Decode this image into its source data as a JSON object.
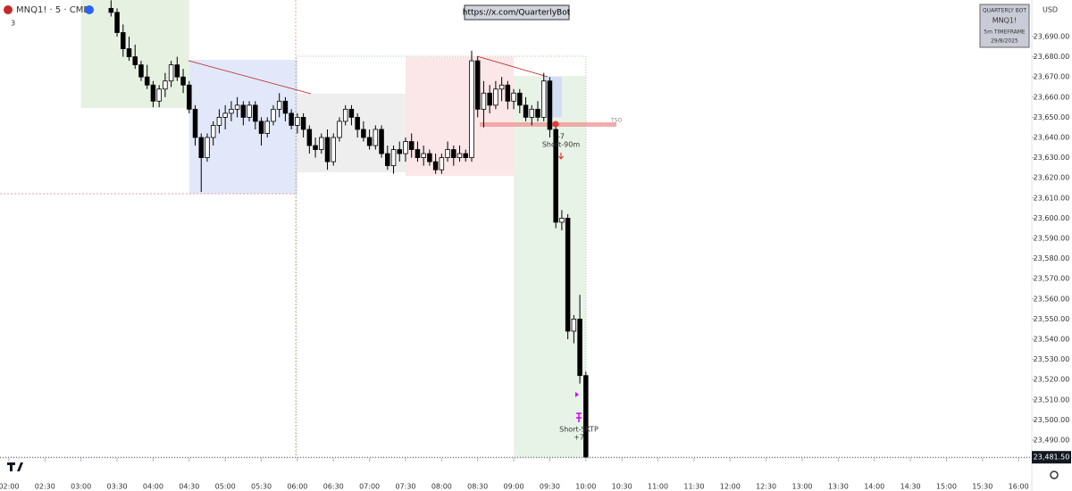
{
  "chart_data": {
    "type": "candlestick",
    "symbol": "MNQ1! · 5 · CME",
    "indicator_count": "3",
    "currency": "USD",
    "link": "https://x.com/QuarterlyBot",
    "info_box": [
      "QUARTERLY BOT",
      "MNQ1!",
      "5m TIMEFRAME",
      "29/8/2025"
    ],
    "annotations": {
      "level": "TSO",
      "entry_pnl": "-7",
      "entry": "Short-90m",
      "exit": "Short-SKTP",
      "exit_pnl": "+7"
    },
    "last_price": {
      "value": 23481.5,
      "label": "23,481.50"
    },
    "up_color": "#ffffff",
    "down_color": "#000000",
    "wick_color": "#000000",
    "xlim": [
      112.6,
      971
    ],
    "ylim": [
      23481.15,
      23708.14
    ],
    "grid": false,
    "xticks": [
      {
        "value": 120,
        "label": "02:00"
      },
      {
        "value": 150,
        "label": "02:30"
      },
      {
        "value": 180,
        "label": "03:00"
      },
      {
        "value": 210,
        "label": "03:30"
      },
      {
        "value": 240,
        "label": "04:00"
      },
      {
        "value": 270,
        "label": "04:30"
      },
      {
        "value": 300,
        "label": "05:00"
      },
      {
        "value": 330,
        "label": "05:30"
      },
      {
        "value": 360,
        "label": "06:00"
      },
      {
        "value": 390,
        "label": "06:30"
      },
      {
        "value": 420,
        "label": "07:00"
      },
      {
        "value": 450,
        "label": "07:30"
      },
      {
        "value": 480,
        "label": "08:00"
      },
      {
        "value": 510,
        "label": "08:30"
      },
      {
        "value": 540,
        "label": "09:00"
      },
      {
        "value": 570,
        "label": "09:30"
      },
      {
        "value": 600,
        "label": "10:00"
      },
      {
        "value": 630,
        "label": "10:30"
      },
      {
        "value": 660,
        "label": "11:00"
      },
      {
        "value": 690,
        "label": "11:30"
      },
      {
        "value": 720,
        "label": "12:00"
      },
      {
        "value": 750,
        "label": "12:30"
      },
      {
        "value": 780,
        "label": "13:00"
      },
      {
        "value": 810,
        "label": "13:30"
      },
      {
        "value": 840,
        "label": "14:00"
      },
      {
        "value": 870,
        "label": "14:30"
      },
      {
        "value": 900,
        "label": "15:00"
      },
      {
        "value": 930,
        "label": "15:30"
      },
      {
        "value": 960,
        "label": "16:00"
      }
    ],
    "yticks": [
      {
        "value": 23490,
        "label": "23,490.00"
      },
      {
        "value": 23500,
        "label": "23,500.00"
      },
      {
        "value": 23510,
        "label": "23,510.00"
      },
      {
        "value": 23520,
        "label": "23,520.00"
      },
      {
        "value": 23530,
        "label": "23,530.00"
      },
      {
        "value": 23540,
        "label": "23,540.00"
      },
      {
        "value": 23550,
        "label": "23,550.00"
      },
      {
        "value": 23560,
        "label": "23,560.00"
      },
      {
        "value": 23570,
        "label": "23,570.00"
      },
      {
        "value": 23580,
        "label": "23,580.00"
      },
      {
        "value": 23590,
        "label": "23,590.00"
      },
      {
        "value": 23600,
        "label": "23,600.00"
      },
      {
        "value": 23610,
        "label": "23,610.00"
      },
      {
        "value": 23620,
        "label": "23,620.00"
      },
      {
        "value": 23630,
        "label": "23,630.00"
      },
      {
        "value": 23640,
        "label": "23,640.00"
      },
      {
        "value": 23650,
        "label": "23,650.00"
      },
      {
        "value": 23660,
        "label": "23,660.00"
      },
      {
        "value": 23670,
        "label": "23,670.00"
      },
      {
        "value": 23680,
        "label": "23,680.00"
      },
      {
        "value": 23690,
        "label": "23,690.00"
      }
    ],
    "zones": [
      {
        "x": [
          180,
          270
        ],
        "y": [
          23654.6,
          23708.14
        ],
        "color": "#e3efdf"
      },
      {
        "x": [
          270,
          360
        ],
        "y": [
          23612,
          23678.5
        ],
        "color": "#dfe5f8"
      },
      {
        "x": [
          360,
          450
        ],
        "y": [
          23622.7,
          23661.7
        ],
        "color": "#ececec"
      },
      {
        "x": [
          450,
          540
        ],
        "y": [
          23621,
          23680
        ],
        "color": "#fbe3e6"
      },
      {
        "x": [
          540,
          600
        ],
        "y": [
          23481.15,
          23670.5
        ],
        "color": "#e6f2e4"
      },
      {
        "x": [
          565,
          580
        ],
        "y": [
          23650,
          23670
        ],
        "color": "#cfdcf5"
      }
    ],
    "x": [
      205,
      210,
      215,
      220,
      225,
      230,
      235,
      240,
      245,
      250,
      255,
      260,
      265,
      270,
      275,
      280,
      285,
      290,
      295,
      300,
      305,
      310,
      315,
      320,
      325,
      330,
      335,
      340,
      345,
      350,
      355,
      360,
      365,
      370,
      375,
      380,
      385,
      390,
      395,
      400,
      405,
      410,
      415,
      420,
      425,
      430,
      435,
      440,
      445,
      450,
      455,
      460,
      465,
      470,
      475,
      480,
      485,
      490,
      495,
      500,
      505,
      510,
      515,
      520,
      525,
      530,
      535,
      540,
      545,
      550,
      555,
      560,
      565,
      570,
      575,
      580,
      585,
      590,
      595,
      600
    ],
    "ohlc": [
      [
        23704,
        23708,
        23700,
        23702
      ],
      [
        23702,
        23704,
        23690,
        23692
      ],
      [
        23692,
        23696,
        23680,
        23684
      ],
      [
        23684,
        23690,
        23678,
        23680
      ],
      [
        23680,
        23686,
        23674,
        23676
      ],
      [
        23676,
        23678,
        23668,
        23670
      ],
      [
        23670,
        23676,
        23664,
        23666
      ],
      [
        23666,
        23668,
        23655,
        23658
      ],
      [
        23658,
        23666,
        23655,
        23664
      ],
      [
        23664,
        23672,
        23660,
        23668
      ],
      [
        23668,
        23678,
        23665,
        23676
      ],
      [
        23676,
        23680,
        23668,
        23670
      ],
      [
        23670,
        23674,
        23662,
        23666
      ],
      [
        23666,
        23668,
        23652,
        23654
      ],
      [
        23654,
        23656,
        23636,
        23640
      ],
      [
        23640,
        23642,
        23613,
        23630
      ],
      [
        23630,
        23642,
        23628,
        23640
      ],
      [
        23640,
        23648,
        23636,
        23646
      ],
      [
        23646,
        23654,
        23642,
        23650
      ],
      [
        23650,
        23656,
        23644,
        23652
      ],
      [
        23652,
        23658,
        23648,
        23654
      ],
      [
        23654,
        23660,
        23650,
        23656
      ],
      [
        23656,
        23658,
        23646,
        23650
      ],
      [
        23650,
        23658,
        23648,
        23656
      ],
      [
        23656,
        23658,
        23644,
        23648
      ],
      [
        23648,
        23650,
        23636,
        23642
      ],
      [
        23642,
        23650,
        23640,
        23648
      ],
      [
        23648,
        23656,
        23646,
        23654
      ],
      [
        23654,
        23662,
        23650,
        23658
      ],
      [
        23658,
        23660,
        23648,
        23652
      ],
      [
        23652,
        23654,
        23644,
        23646
      ],
      [
        23646,
        23652,
        23642,
        23650
      ],
      [
        23650,
        23652,
        23640,
        23644
      ],
      [
        23644,
        23646,
        23632,
        23636
      ],
      [
        23636,
        23640,
        23630,
        23634
      ],
      [
        23634,
        23642,
        23632,
        23640
      ],
      [
        23640,
        23644,
        23624,
        23628
      ],
      [
        23628,
        23642,
        23626,
        23640
      ],
      [
        23640,
        23650,
        23638,
        23648
      ],
      [
        23648,
        23656,
        23646,
        23654
      ],
      [
        23654,
        23656,
        23646,
        23650
      ],
      [
        23650,
        23652,
        23640,
        23644
      ],
      [
        23644,
        23648,
        23638,
        23640
      ],
      [
        23640,
        23644,
        23634,
        23636
      ],
      [
        23636,
        23646,
        23634,
        23644
      ],
      [
        23644,
        23646,
        23630,
        23632
      ],
      [
        23632,
        23636,
        23624,
        23626
      ],
      [
        23626,
        23636,
        23622,
        23634
      ],
      [
        23634,
        23638,
        23628,
        23632
      ],
      [
        23632,
        23640,
        23628,
        23638
      ],
      [
        23638,
        23642,
        23630,
        23634
      ],
      [
        23634,
        23638,
        23628,
        23630
      ],
      [
        23630,
        23636,
        23626,
        23632
      ],
      [
        23632,
        23634,
        23626,
        23628
      ],
      [
        23628,
        23632,
        23622,
        23624
      ],
      [
        23624,
        23632,
        23622,
        23630
      ],
      [
        23630,
        23638,
        23628,
        23634
      ],
      [
        23634,
        23636,
        23626,
        23630
      ],
      [
        23630,
        23636,
        23628,
        23632
      ],
      [
        23632,
        23634,
        23628,
        23630
      ],
      [
        23630,
        23683,
        23628,
        23678
      ],
      [
        23678,
        23680,
        23650,
        23654
      ],
      [
        23654,
        23668,
        23645,
        23662
      ],
      [
        23662,
        23666,
        23652,
        23656
      ],
      [
        23656,
        23668,
        23654,
        23664
      ],
      [
        23664,
        23670,
        23658,
        23666
      ],
      [
        23666,
        23668,
        23654,
        23658
      ],
      [
        23658,
        23664,
        23654,
        23662
      ],
      [
        23662,
        23664,
        23652,
        23656
      ],
      [
        23656,
        23660,
        23648,
        23650
      ],
      [
        23650,
        23656,
        23646,
        23654
      ],
      [
        23654,
        23658,
        23648,
        23650
      ],
      [
        23650,
        23672,
        23648,
        23668
      ],
      [
        23668,
        23670,
        23640,
        23644
      ],
      [
        23644,
        23646,
        23595,
        23598
      ],
      [
        23598,
        23604,
        23594,
        23600
      ],
      [
        23600,
        23602,
        23540,
        23544
      ],
      [
        23544,
        23552,
        23538,
        23550
      ],
      [
        23550,
        23562,
        23518,
        23522
      ],
      [
        23522,
        23524,
        23481.5,
        23481.5
      ]
    ]
  }
}
